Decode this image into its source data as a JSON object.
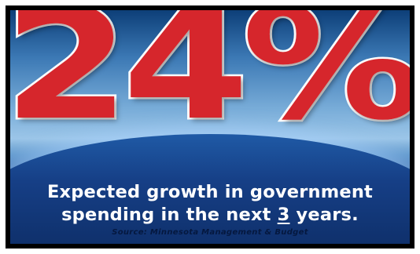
{
  "headline": {
    "percent": "24%"
  },
  "caption": {
    "line1": "Expected growth in government",
    "line2_before": "spending in the next ",
    "line2_number": "3",
    "line2_after": " years."
  },
  "source": {
    "text": "Source: Minnesota Management & Budget"
  },
  "colors": {
    "number_fill": "#d6262c",
    "number_outline": "#ffffff",
    "background_top": "#0d3f78",
    "background_bottom": "#0b2357",
    "caption_text": "#ffffff",
    "border": "#000000"
  }
}
